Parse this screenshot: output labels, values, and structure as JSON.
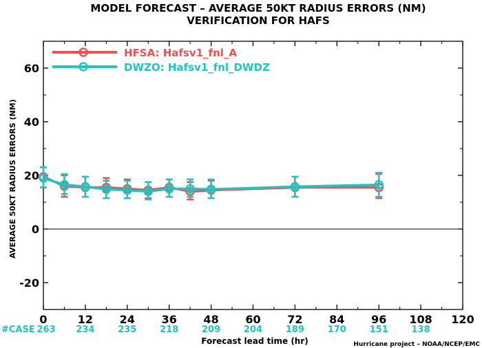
{
  "chart_data": {
    "type": "line",
    "title": "MODEL FORECAST – AVERAGE 50KT RADIUS ERRORS (NM)",
    "subtitle": "VERIFICATION FOR HAFS",
    "xlabel": "Forecast lead time (hr)",
    "ylabel": "AVERAGE 50KT RADIUS ERRORS (NM)",
    "xlim": [
      0,
      120
    ],
    "ylim": [
      -30,
      70
    ],
    "xticks": [
      "0",
      "12",
      "24",
      "36",
      "48",
      "60",
      "72",
      "84",
      "96",
      "108",
      "120"
    ],
    "yticks": [
      "60",
      "40",
      "20",
      "0",
      "-20"
    ],
    "zero_line": true,
    "legend_position": "top-left",
    "credit": "Hurricane project – NOAA/NCEP/EMC",
    "case_label": "#CASE",
    "cases": [
      {
        "x": 0,
        "label": "263"
      },
      {
        "x": 12,
        "label": "234"
      },
      {
        "x": 24,
        "label": "235"
      },
      {
        "x": 36,
        "label": "218"
      },
      {
        "x": 48,
        "label": "209"
      },
      {
        "x": 60,
        "label": "204"
      },
      {
        "x": 72,
        "label": "189"
      },
      {
        "x": 84,
        "label": "170"
      },
      {
        "x": 96,
        "label": "151"
      },
      {
        "x": 108,
        "label": "138"
      }
    ],
    "series": [
      {
        "name": "HFSA: Hafsv1_fnl_A",
        "color": "#f05050",
        "points": [
          {
            "x": 0,
            "y": 19.5,
            "lo": 15.5,
            "hi": 23.0
          },
          {
            "x": 6,
            "y": 16.0,
            "lo": 12.0,
            "hi": 20.0
          },
          {
            "x": 12,
            "y": 15.5,
            "lo": 12.0,
            "hi": 19.5
          },
          {
            "x": 18,
            "y": 15.5,
            "lo": 11.5,
            "hi": 19.0
          },
          {
            "x": 24,
            "y": 15.0,
            "lo": 11.5,
            "hi": 18.5
          },
          {
            "x": 30,
            "y": 14.5,
            "lo": 11.5,
            "hi": 17.5
          },
          {
            "x": 36,
            "y": 15.5,
            "lo": 12.0,
            "hi": 18.5
          },
          {
            "x": 42,
            "y": 14.0,
            "lo": 11.0,
            "hi": 17.5
          },
          {
            "x": 48,
            "y": 14.5,
            "lo": 11.5,
            "hi": 18.0
          },
          {
            "x": 72,
            "y": 15.5,
            "lo": 12.0,
            "hi": 19.5
          },
          {
            "x": 96,
            "y": 15.5,
            "lo": 11.5,
            "hi": 20.5
          }
        ]
      },
      {
        "name": "DWZO: Hafsv1_fnl_DWDZ",
        "color": "#20c4c0",
        "points": [
          {
            "x": 0,
            "y": 19.0,
            "lo": 15.5,
            "hi": 23.0
          },
          {
            "x": 6,
            "y": 16.5,
            "lo": 13.0,
            "hi": 20.5
          },
          {
            "x": 12,
            "y": 15.8,
            "lo": 12.0,
            "hi": 19.5
          },
          {
            "x": 18,
            "y": 14.8,
            "lo": 11.5,
            "hi": 18.0
          },
          {
            "x": 24,
            "y": 14.5,
            "lo": 11.5,
            "hi": 18.0
          },
          {
            "x": 30,
            "y": 14.0,
            "lo": 11.0,
            "hi": 17.5
          },
          {
            "x": 36,
            "y": 15.0,
            "lo": 12.0,
            "hi": 18.5
          },
          {
            "x": 42,
            "y": 15.0,
            "lo": 12.0,
            "hi": 18.5
          },
          {
            "x": 48,
            "y": 14.8,
            "lo": 11.5,
            "hi": 18.5
          },
          {
            "x": 72,
            "y": 15.8,
            "lo": 12.0,
            "hi": 19.5
          },
          {
            "x": 96,
            "y": 16.5,
            "lo": 12.0,
            "hi": 21.0
          }
        ]
      }
    ]
  }
}
